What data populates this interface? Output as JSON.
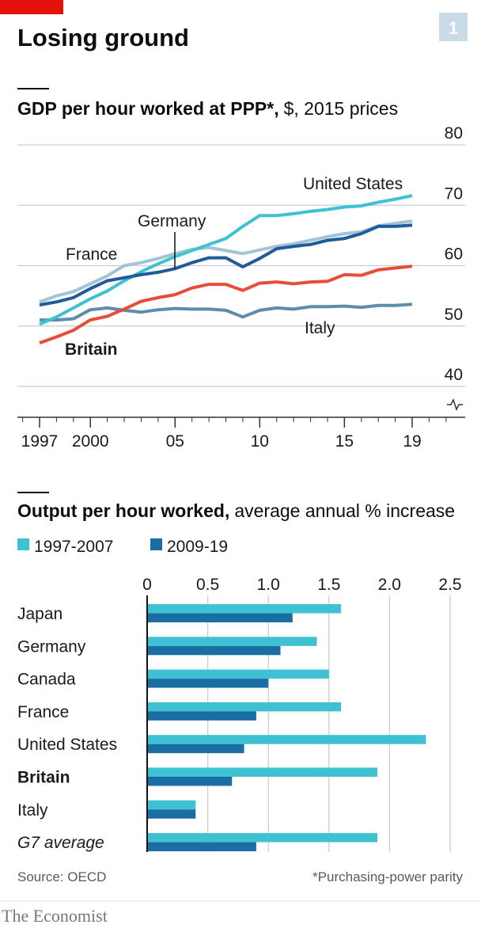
{
  "header": {
    "title": "Losing ground",
    "badge": "1"
  },
  "footer": {
    "source": "Source: OECD",
    "note": "*Purchasing-power parity",
    "publisher": "The Economist"
  },
  "chart_data": [
    {
      "type": "line",
      "title": "GDP per hour worked at PPP*,",
      "subtitle": "$, 2015 prices",
      "x": [
        1997,
        1998,
        1999,
        2000,
        2001,
        2002,
        2003,
        2004,
        2005,
        2006,
        2007,
        2008,
        2009,
        2010,
        2011,
        2012,
        2013,
        2014,
        2015,
        2016,
        2017,
        2018,
        2019
      ],
      "xlim": [
        1997,
        2019
      ],
      "xticks": [
        1997,
        2000,
        {
          "value": 2005,
          "label": "05"
        },
        {
          "value": 2010,
          "label": "10"
        },
        {
          "value": 2015,
          "label": "15"
        },
        {
          "value": 2019,
          "label": "19"
        }
      ],
      "ylim": [
        40,
        80
      ],
      "yticks": [
        40,
        50,
        60,
        70,
        80
      ],
      "grid": true,
      "series": [
        {
          "name": "France",
          "color": "#a3c3d6",
          "values": [
            54,
            55,
            55.7,
            57,
            58.3,
            60,
            60.5,
            61.2,
            62,
            62.7,
            63,
            62.5,
            62,
            62.6,
            63.2,
            63.6,
            64.2,
            64.8,
            65.3,
            65.6,
            66.6,
            67,
            67.4
          ]
        },
        {
          "name": "Italy",
          "color": "#5d8cad",
          "values": [
            51,
            51,
            51.2,
            52.7,
            53,
            52.6,
            52.3,
            52.7,
            52.9,
            52.8,
            52.8,
            52.6,
            51.5,
            52.6,
            53,
            52.8,
            53.2,
            53.2,
            53.3,
            53.1,
            53.4,
            53.4,
            53.6
          ]
        },
        {
          "name": "Britain",
          "color": "#e64e35",
          "values": [
            47.2,
            48.2,
            49.3,
            51,
            51.6,
            52.8,
            54.1,
            54.7,
            55.2,
            56.3,
            56.9,
            56.9,
            55.9,
            57.1,
            57.3,
            57,
            57.3,
            57.4,
            58.5,
            58.4,
            59.3,
            59.6,
            59.9
          ]
        },
        {
          "name": "United States",
          "color": "#3ec1d3",
          "values": [
            50.3,
            51.5,
            53,
            54.5,
            55.8,
            57.5,
            59,
            60.3,
            61.5,
            62.5,
            63.5,
            64.5,
            66.5,
            68.3,
            68.3,
            68.6,
            69,
            69.3,
            69.7,
            69.9,
            70.5,
            71,
            71.6
          ]
        },
        {
          "name": "Germany",
          "color": "#1f5c99",
          "values": [
            53.5,
            54,
            54.7,
            56.2,
            57.5,
            58,
            58.5,
            58.9,
            59.5,
            60.5,
            61.3,
            61.3,
            59.8,
            61.2,
            62.8,
            63.2,
            63.5,
            64.2,
            64.5,
            65.3,
            66.5,
            66.5,
            66.7
          ]
        }
      ]
    },
    {
      "type": "hbar",
      "title": "Output per hour worked,",
      "subtitle": "average annual % increase",
      "categories": [
        "Japan",
        "Germany",
        "Canada",
        "France",
        "United States",
        "Britain",
        "Italy",
        "G7 average"
      ],
      "xlim": [
        0,
        2.5
      ],
      "xticks": [
        0,
        0.5,
        {
          "value": 1,
          "label": "1.0"
        },
        1.5,
        {
          "value": 2,
          "label": "2.0"
        },
        2.5
      ],
      "grid": true,
      "series": [
        {
          "name": "1997-2007",
          "color": "#3ec1d3",
          "values": [
            1.6,
            1.4,
            1.5,
            1.6,
            2.3,
            1.9,
            0.4,
            1.9
          ]
        },
        {
          "name": "2009-19",
          "color": "#1a6ea3",
          "values": [
            1.2,
            1.1,
            1.0,
            0.9,
            0.8,
            0.7,
            0.4,
            0.9
          ]
        }
      ]
    }
  ]
}
